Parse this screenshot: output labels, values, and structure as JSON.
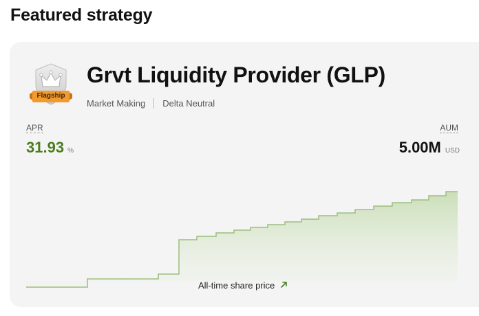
{
  "section": {
    "title": "Featured strategy"
  },
  "strategy": {
    "badge": "Flagship",
    "name": "Grvt Liquidity Provider (GLP)",
    "tags": [
      "Market Making",
      "Delta Neutral"
    ]
  },
  "metrics": {
    "apr": {
      "label": "APR",
      "value": "31.93",
      "unit": "%"
    },
    "aum": {
      "label": "AUM",
      "value": "5.00M",
      "unit": "USD"
    }
  },
  "chart": {
    "caption": "All-time share price",
    "caption_icon": "arrow-up-right-icon",
    "line_color": "#9bbe7e",
    "fill_color": "#c8ddb4"
  },
  "colors": {
    "apr_green": "#4a7d1e",
    "card_bg": "#f4f4f4",
    "badge_orange": "#f39a2c"
  }
}
